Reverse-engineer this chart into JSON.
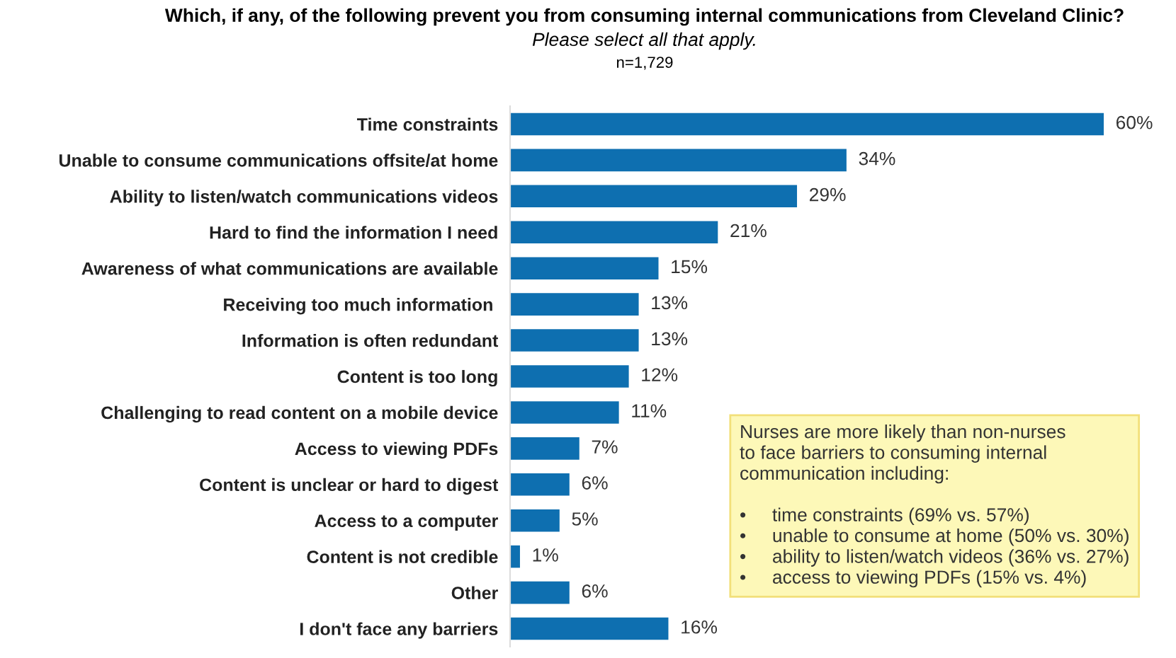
{
  "chart_data": {
    "type": "bar",
    "orientation": "horizontal",
    "title": "Which, if any, of the following prevent you from consuming internal communications from Cleveland Clinic?",
    "subtitle": "Please select all that apply.",
    "annotations": [
      "n=1,729",
      "Nurses are more likely than non-nurses\nto face barriers to consuming internal\ncommunication including:\n\n•     time constraints (69% vs. 57%)\n•     unable to consume at home (50% vs. 30%)\n•     ability to listen/watch videos (36% vs. 27%)\n•     access to viewing PDFs (15% vs. 4%)"
    ],
    "categories": [
      "Time constraints",
      "Unable to consume communications offsite/at home",
      "Ability to listen/watch communications videos",
      "Hard to find the information I need",
      "Awareness of what communications are available",
      "Receiving too much information ",
      "Information is often redundant",
      "Content is too long",
      "Challenging to read content on a mobile device",
      "Access to viewing PDFs",
      "Content is unclear or hard to digest",
      "Access to a computer",
      "Content is not credible",
      "Other",
      "I don't face any barriers"
    ],
    "values": [
      60,
      34,
      29,
      21,
      15,
      13,
      13,
      12,
      11,
      7,
      6,
      5,
      1,
      6,
      16
    ],
    "color": "#0e6fb0",
    "value_labels": [
      "60%",
      "34%",
      "29%",
      "21%",
      "15%",
      "13%",
      "13%",
      "12%",
      "11%",
      "7%",
      "6%",
      "5%",
      "1%",
      "6%",
      "16%"
    ]
  }
}
